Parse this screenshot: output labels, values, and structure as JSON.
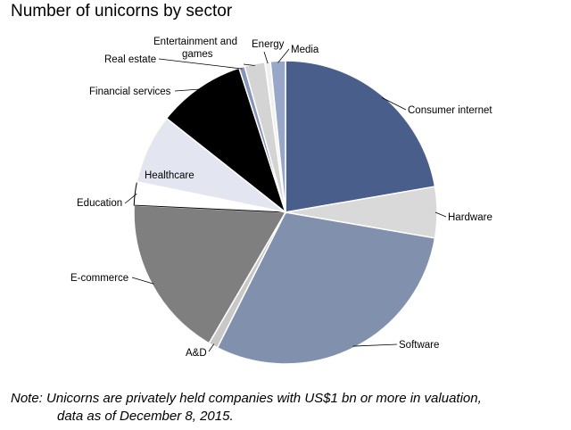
{
  "chart_data": {
    "type": "pie",
    "title": "Number of unicorns by sector",
    "start_angle_deg": 0,
    "direction": "clockwise",
    "slices": [
      {
        "label": "Consumer internet",
        "value": 22.5,
        "color": "#4a5e8c"
      },
      {
        "label": "Hardware",
        "value": 5.5,
        "color": "#d9d9d9"
      },
      {
        "label": "Software",
        "value": 30,
        "color": "#8090ad"
      },
      {
        "label": "A&D",
        "value": 1,
        "color": "#c8c8c8"
      },
      {
        "label": "E-commerce",
        "value": 17.5,
        "color": "#7f7f7f"
      },
      {
        "label": "Education",
        "value": 2.5,
        "color": "#ffffff"
      },
      {
        "label": "Healthcare",
        "value": 7.5,
        "color": "#e3e6f0"
      },
      {
        "label": "Financial services",
        "value": 9.5,
        "color": "#000000"
      },
      {
        "label": "Real estate",
        "value": 0.6,
        "color": "#8796b8"
      },
      {
        "label": "Entertainment and games",
        "value": 2.2,
        "color": "#d4d4d4"
      },
      {
        "label": "Energy",
        "value": 0.6,
        "color": "#f0f0f0"
      },
      {
        "label": "Media",
        "value": 1.6,
        "color": "#98a6c8"
      }
    ]
  },
  "note": {
    "line1": "Note: Unicorns are privately held companies with US$1 bn or more in valuation,",
    "line2": "data as of December 8, 2015."
  }
}
